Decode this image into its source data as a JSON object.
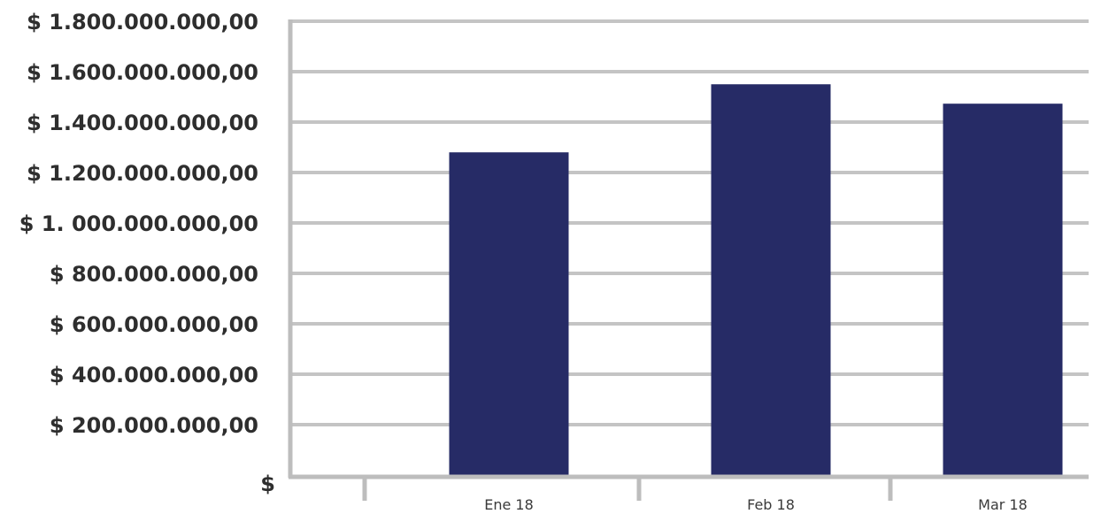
{
  "chart_data": {
    "type": "bar",
    "categories": [
      "Ene 18",
      "Feb 18",
      "Mar 18"
    ],
    "values": [
      1280000000,
      1550000000,
      1473000000
    ],
    "bar_color": "#262b66",
    "grid": true,
    "ylim": [
      0,
      1800000000
    ],
    "ytick_values": [
      0,
      200000000,
      400000000,
      600000000,
      800000000,
      1000000000,
      1200000000,
      1400000000,
      1600000000,
      1800000000
    ],
    "ytick_labels": [
      "$",
      "$ 200.000.000,00",
      "$ 400.000.000,00",
      "$ 600.000.000,00",
      "$ 800.000.000,00",
      "$ 1. 000.000.000,00",
      "$  1.200.000.000,00",
      "$ 1.400.000.000,00",
      "$ 1.600.000.000,00",
      "$ 1.800.000.000,00"
    ]
  }
}
